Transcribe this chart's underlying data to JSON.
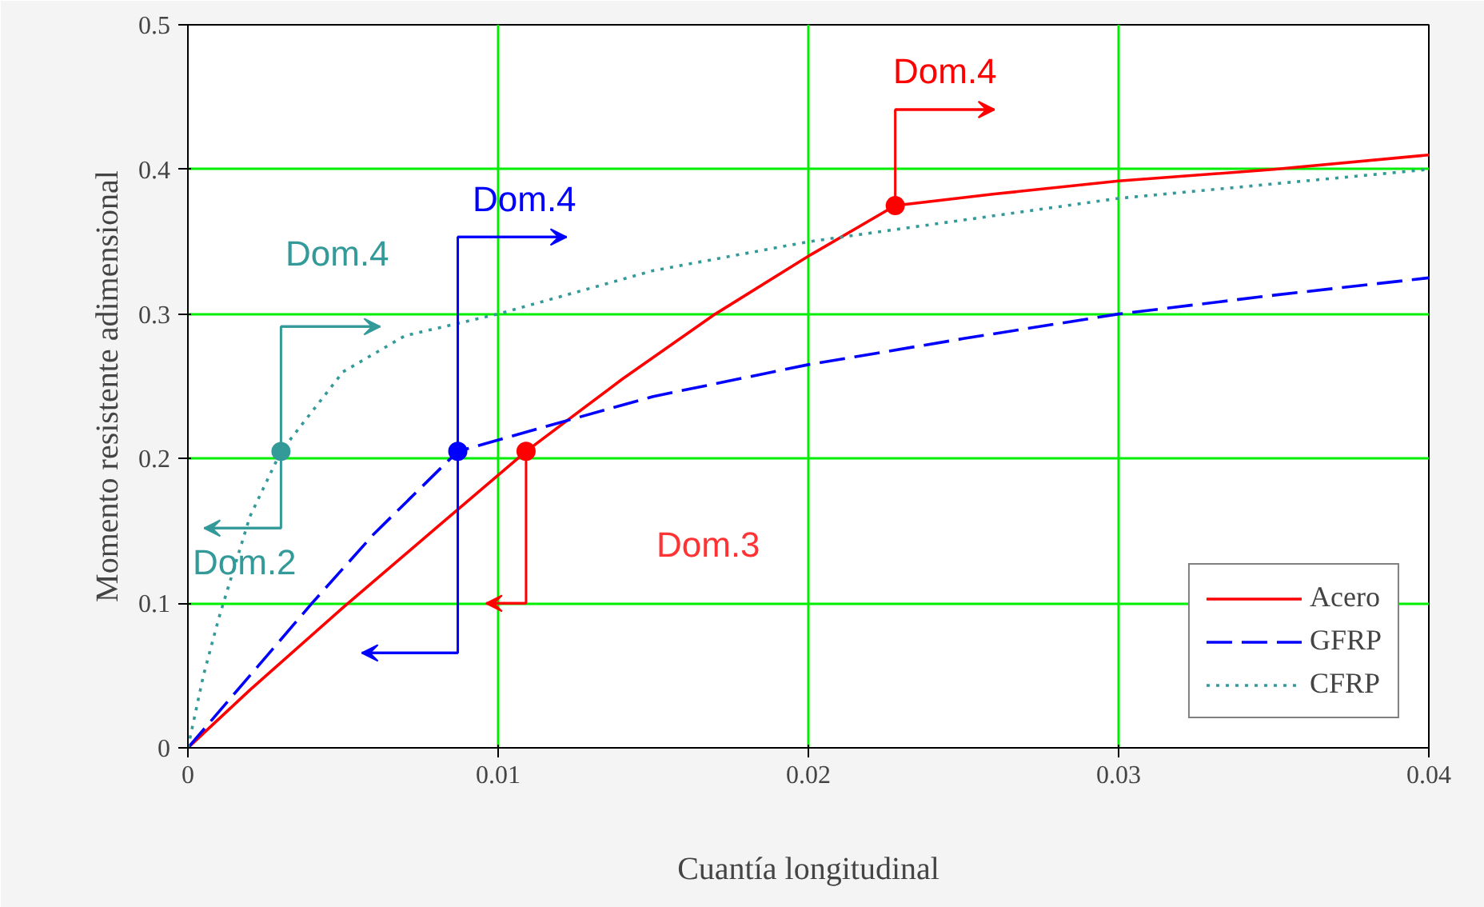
{
  "chart_data": {
    "type": "line",
    "xlabel": "Cuantía longitudinal",
    "ylabel": "Momento resistente adimensional",
    "xlim": [
      0,
      0.04
    ],
    "ylim": [
      0,
      0.5
    ],
    "xticks": [
      0,
      0.01,
      0.02,
      0.03,
      0.04
    ],
    "yticks": [
      0,
      0.1,
      0.2,
      0.3,
      0.4,
      0.5
    ],
    "grid": true,
    "legend": "bottom right",
    "series": [
      {
        "name": "Acero",
        "color": "#ff0000",
        "line_style": "solid",
        "x": [
          0,
          0.002,
          0.005,
          0.008,
          0.0109,
          0.014,
          0.017,
          0.02,
          0.0228,
          0.026,
          0.03,
          0.035,
          0.04
        ],
        "values": [
          0,
          0.04,
          0.097,
          0.152,
          0.205,
          0.255,
          0.3,
          0.34,
          0.375,
          0.383,
          0.392,
          0.4,
          0.41
        ]
      },
      {
        "name": "GFRP",
        "color": "#0000ff",
        "line_style": "dashed",
        "x": [
          0,
          0.002,
          0.004,
          0.006,
          0.0087,
          0.012,
          0.015,
          0.02,
          0.025,
          0.03,
          0.035,
          0.04
        ],
        "values": [
          0,
          0.05,
          0.1,
          0.148,
          0.205,
          0.225,
          0.243,
          0.265,
          0.283,
          0.3,
          0.313,
          0.325
        ]
      },
      {
        "name": "CFRP",
        "color": "#339999",
        "line_style": "dotted",
        "x": [
          0,
          0.0005,
          0.001,
          0.002,
          0.003,
          0.005,
          0.007,
          0.01,
          0.015,
          0.02,
          0.025,
          0.03,
          0.035,
          0.04
        ],
        "values": [
          0,
          0.05,
          0.09,
          0.16,
          0.205,
          0.26,
          0.285,
          0.3,
          0.33,
          0.35,
          0.365,
          0.38,
          0.39,
          0.4
        ]
      },
      {
        "type": "scatter",
        "marker": "circle",
        "color": "#339999",
        "x": [
          0.003
        ],
        "values": [
          0.205
        ]
      },
      {
        "type": "scatter",
        "marker": "circle",
        "color": "#0000ff",
        "x": [
          0.0087
        ],
        "values": [
          0.205
        ]
      },
      {
        "type": "scatter",
        "marker": "circle",
        "color": "#ff0000",
        "x": [
          0.0109,
          0.0228
        ],
        "values": [
          0.205,
          0.375
        ]
      }
    ],
    "annotations": [
      "Dom.4",
      "Dom.4",
      "Dom.4",
      "Dom.2",
      "Dom.3"
    ]
  }
}
